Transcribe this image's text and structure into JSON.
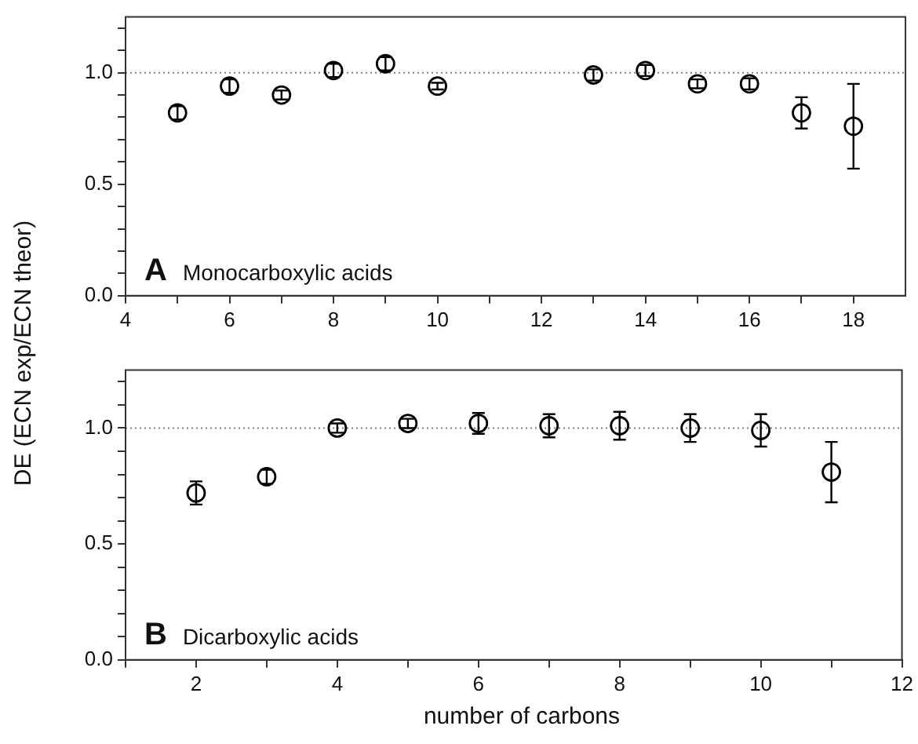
{
  "chart_data": [
    {
      "type": "scatter",
      "ylabel": "DE (ECN exp/ECN theor)",
      "annotations": [
        "A",
        "Monocarboxylic acids"
      ],
      "x": [
        5,
        6,
        7,
        8,
        9,
        10,
        13,
        14,
        15,
        16,
        17,
        18
      ],
      "series": [
        {
          "color": "#000000",
          "values": [
            0.82,
            0.94,
            0.9,
            1.01,
            1.04,
            0.94,
            0.99,
            1.01,
            0.95,
            0.95,
            0.82,
            0.76
          ],
          "errors": [
            0.03,
            0.03,
            0.02,
            0.03,
            0.03,
            0.015,
            0.025,
            0.025,
            0.02,
            0.025,
            0.07,
            0.19
          ]
        }
      ],
      "xlim": [
        4,
        19
      ],
      "xticks": [
        4,
        {
          "value": 5,
          "label": null
        },
        6,
        {
          "value": 7,
          "label": null
        },
        8,
        {
          "value": 9,
          "label": null
        },
        10,
        {
          "value": 11,
          "label": null
        },
        12,
        {
          "value": 13,
          "label": null
        },
        14,
        {
          "value": 15,
          "label": null
        },
        16,
        {
          "value": 17,
          "label": null
        },
        18
      ],
      "ylim": [
        0,
        1.25
      ],
      "yticks": [
        {
          "value": 0,
          "label": "0.0"
        },
        {
          "value": 0.1,
          "label": null
        },
        {
          "value": 0.2,
          "label": null
        },
        {
          "value": 0.3,
          "label": null
        },
        {
          "value": 0.4,
          "label": null
        },
        {
          "value": 0.5,
          "label": "0.5"
        },
        {
          "value": 0.6,
          "label": null
        },
        {
          "value": 0.7,
          "label": null
        },
        {
          "value": 0.8,
          "label": null
        },
        {
          "value": 0.9,
          "label": null
        },
        {
          "value": 1,
          "label": "1.0"
        },
        {
          "value": 1.1,
          "label": null
        },
        {
          "value": 1.2,
          "label": null
        }
      ],
      "ref_lines": [
        {
          "axis": "y",
          "value": 1,
          "color": "#808080",
          "line_style": "dotted"
        }
      ],
      "marker": "circle",
      "grid": false,
      "legend": false
    },
    {
      "type": "scatter",
      "xlabel": "number of carbons",
      "annotations": [
        "B",
        "Dicarboxylic acids"
      ],
      "x": [
        2,
        3,
        4,
        5,
        6,
        7,
        8,
        9,
        10,
        11
      ],
      "series": [
        {
          "color": "#000000",
          "values": [
            0.72,
            0.79,
            1.0,
            1.02,
            1.02,
            1.01,
            1.01,
            1.0,
            0.99,
            0.81
          ],
          "errors": [
            0.05,
            0.03,
            0.02,
            0.02,
            0.045,
            0.05,
            0.06,
            0.06,
            0.07,
            0.13
          ]
        }
      ],
      "xlim": [
        1,
        12
      ],
      "xticks": [
        {
          "value": 1,
          "label": null
        },
        2,
        {
          "value": 3,
          "label": null
        },
        4,
        {
          "value": 5,
          "label": null
        },
        6,
        {
          "value": 7,
          "label": null
        },
        8,
        {
          "value": 9,
          "label": null
        },
        10,
        {
          "value": 11,
          "label": null
        },
        12
      ],
      "ylim": [
        0,
        1.25
      ],
      "yticks": [
        {
          "value": 0,
          "label": "0.0"
        },
        {
          "value": 0.1,
          "label": null
        },
        {
          "value": 0.2,
          "label": null
        },
        {
          "value": 0.3,
          "label": null
        },
        {
          "value": 0.4,
          "label": null
        },
        {
          "value": 0.5,
          "label": "0.5"
        },
        {
          "value": 0.6,
          "label": null
        },
        {
          "value": 0.7,
          "label": null
        },
        {
          "value": 0.8,
          "label": null
        },
        {
          "value": 0.9,
          "label": null
        },
        {
          "value": 1,
          "label": "1.0"
        },
        {
          "value": 1.1,
          "label": null
        },
        {
          "value": 1.2,
          "label": null
        }
      ],
      "ref_lines": [
        {
          "axis": "y",
          "value": 1,
          "color": "#808080",
          "line_style": "dotted"
        }
      ],
      "marker": "circle",
      "grid": false,
      "legend": false
    }
  ]
}
